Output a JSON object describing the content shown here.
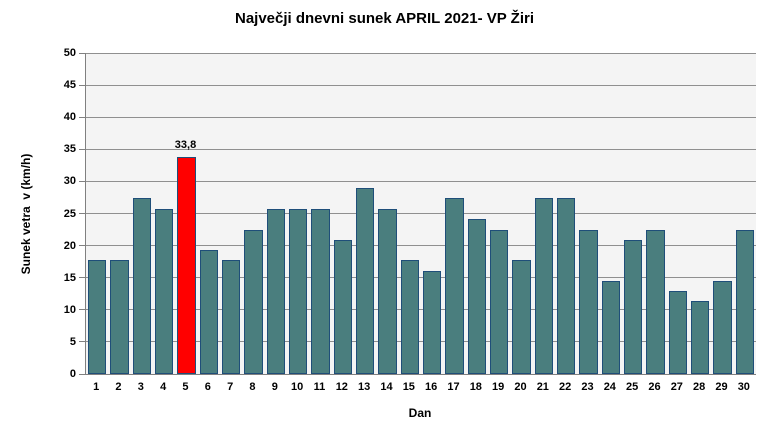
{
  "chart_data": {
    "type": "bar",
    "title": "Največji dnevni sunek APRIL 2021- VP Žiri",
    "xlabel": "Dan",
    "ylabel": "Sunek vetra  v (km/h)",
    "categories": [
      "1",
      "2",
      "3",
      "4",
      "5",
      "6",
      "7",
      "8",
      "9",
      "10",
      "11",
      "12",
      "13",
      "14",
      "15",
      "16",
      "17",
      "18",
      "19",
      "20",
      "21",
      "22",
      "23",
      "24",
      "25",
      "26",
      "27",
      "28",
      "29",
      "30"
    ],
    "values": [
      17.7,
      17.7,
      27.4,
      25.7,
      33.8,
      19.3,
      17.7,
      22.5,
      25.7,
      25.7,
      25.7,
      20.9,
      29.0,
      25.7,
      17.7,
      16.1,
      27.4,
      24.1,
      22.5,
      17.7,
      27.4,
      27.4,
      22.5,
      14.5,
      20.9,
      22.5,
      12.9,
      11.3,
      14.5,
      22.5
    ],
    "ylim": [
      0,
      50
    ],
    "ytick_step": 5,
    "grid": true,
    "legend": "none",
    "highlight": {
      "index": 4,
      "label": "33,8",
      "color": "#ff0000"
    },
    "colors": {
      "bar_fill": "#4a7e7e",
      "bar_border": "#1f4e79",
      "highlight_fill": "#ff0000",
      "plot_background": "#f4f4f4",
      "gridline": "#8f8f8f",
      "axis_line": "#808080",
      "text": "#000000",
      "page_background": "#ffffff"
    }
  }
}
